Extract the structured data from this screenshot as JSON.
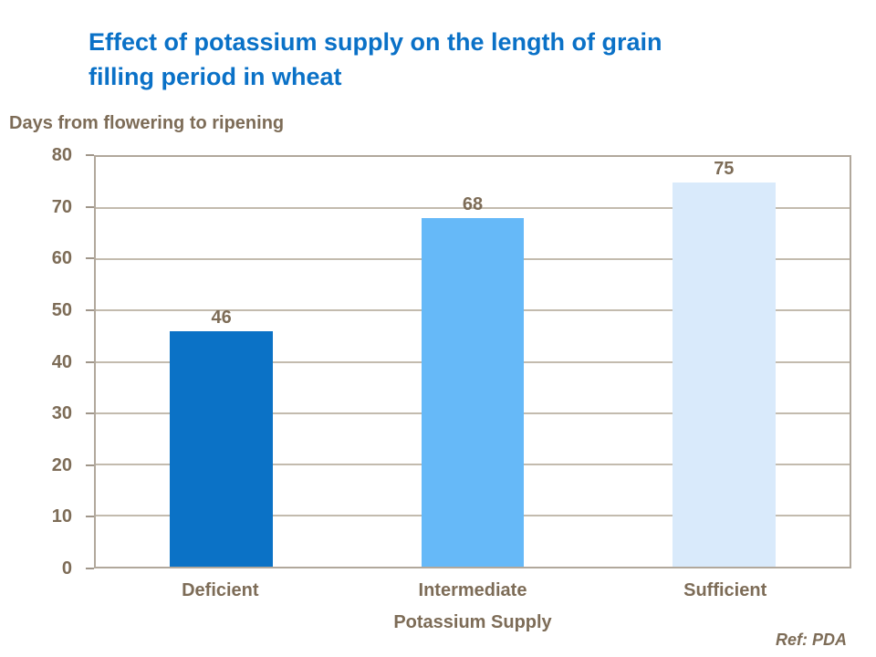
{
  "title": {
    "lines": [
      "Effect of potassium supply on the length of grain",
      "filling period in wheat"
    ],
    "color": "#0a71c7"
  },
  "y_axis_caption": "Days from flowering to ripening",
  "reference": "Ref: PDA",
  "text_color": "#7d6c57",
  "chart_data": {
    "type": "bar",
    "title": "Effect of potassium supply on the length of grain filling period in wheat",
    "categories": [
      "Deficient",
      "Intermediate",
      "Sufficient"
    ],
    "values": [
      46,
      68,
      75
    ],
    "bar_colors": [
      "#0b72c6",
      "#66b9f8",
      "#d9eafb"
    ],
    "xlabel": "Potassium Supply",
    "ylabel": "Days from flowering to ripening",
    "ylim": [
      0,
      80
    ],
    "ytick_step": 10,
    "grid": true,
    "legend": false,
    "value_labels_shown": true,
    "grid_color": "#c3bbae",
    "border_color": "#b1a89c"
  }
}
